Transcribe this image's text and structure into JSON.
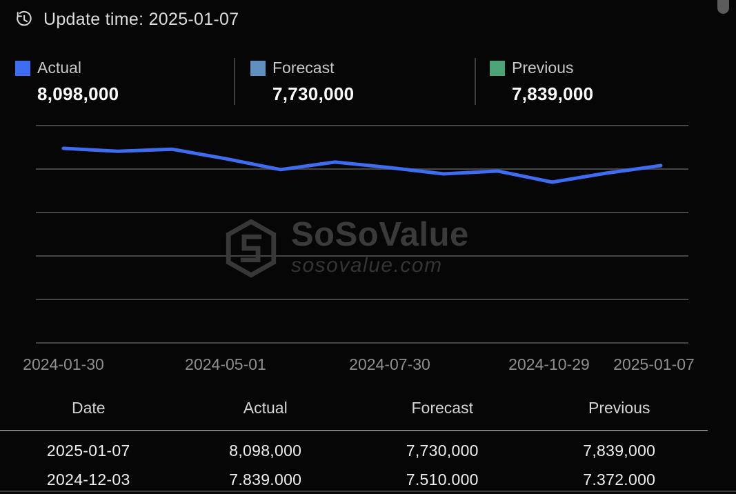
{
  "header": {
    "update_time": "Update time: 2025-01-07"
  },
  "legend": [
    {
      "name": "Actual",
      "value": "8,098,000",
      "color": "#3e6df2"
    },
    {
      "name": "Forecast",
      "value": "7,730,000",
      "color": "#6090bf"
    },
    {
      "name": "Previous",
      "value": "7,839,000",
      "color": "#4ca377"
    }
  ],
  "watermark": {
    "title": "SoSoValue",
    "subtitle": "sosovalue.com"
  },
  "chart_data": {
    "type": "line",
    "series": [
      {
        "name": "Actual",
        "color": "#3e6df2",
        "values": [
          8690000,
          8590000,
          8660000,
          8330000,
          7960000,
          8220000,
          8030000,
          7815000,
          7910000,
          7530000,
          7839000,
          8098000
        ]
      }
    ],
    "x_tick_labels": [
      "2024-01-30",
      "2024-05-01",
      "2024-07-30",
      "2024-10-29",
      "2025-01-07"
    ],
    "x_tick_point_indices": [
      0,
      3,
      6,
      9,
      11
    ],
    "ylim": [
      7530000,
      8690000
    ],
    "grid": true,
    "grid_lines": 6,
    "legend_position": "top",
    "y_axis_labels_shown": false
  },
  "table": {
    "headers": [
      "Date",
      "Actual",
      "Forecast",
      "Previous"
    ],
    "rows": [
      [
        "2025-01-07",
        "8,098,000",
        "7,730,000",
        "7,839,000"
      ],
      [
        "2024-12-03",
        "7.839.000",
        "7.510.000",
        "7.372.000"
      ]
    ]
  }
}
